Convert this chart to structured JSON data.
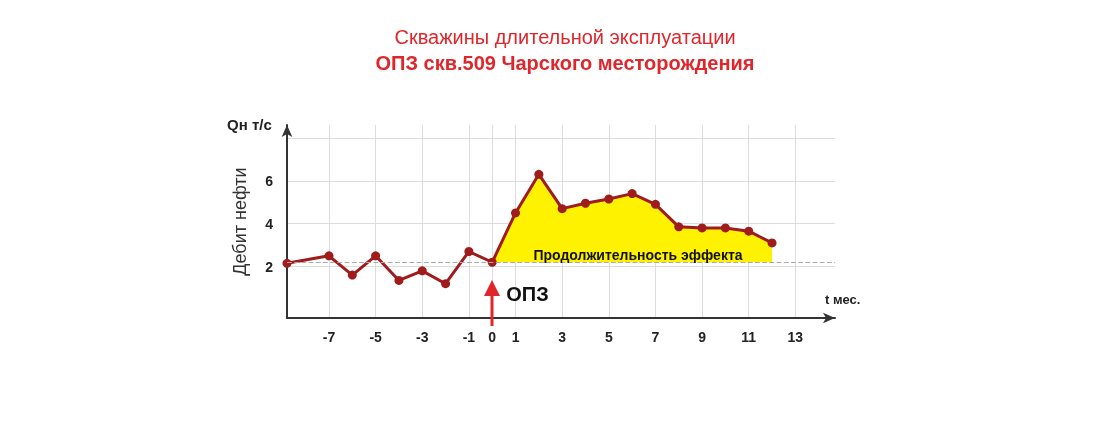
{
  "chart_data": {
    "type": "line",
    "title": "Скважины длительной эксплуатации",
    "subtitle": "ОПЗ скв.509 Чарского месторождения",
    "xlabel": "t мес.",
    "ylabel": "Дебит нефти",
    "series": [
      {
        "type": "area",
        "marker": "none",
        "color": "#fff200",
        "x": [
          0,
          1,
          2,
          3,
          4,
          5,
          6,
          7,
          8,
          9,
          10,
          11,
          12
        ],
        "values": [
          2.2,
          4.5,
          6.3,
          4.7,
          4.95,
          5.15,
          5.4,
          4.9,
          3.85,
          3.8,
          3.8,
          3.65,
          3.1
        ]
      },
      {
        "color": "#a01c1c",
        "x": [
          -8.8,
          -7,
          -6,
          -5,
          -4,
          -3,
          -2,
          -1,
          0,
          1,
          2,
          3,
          4,
          5,
          6,
          7,
          8,
          9,
          10,
          11,
          12
        ],
        "values": [
          2.15,
          2.5,
          1.6,
          2.5,
          1.35,
          1.8,
          1.2,
          2.7,
          2.2,
          4.5,
          6.3,
          4.7,
          4.95,
          5.15,
          5.4,
          4.9,
          3.85,
          3.8,
          3.8,
          3.65,
          3.1
        ]
      }
    ],
    "xlim": [
      -8.8,
      14.7
    ],
    "xticks": [
      -7,
      -5,
      -3,
      -1,
      0,
      1,
      3,
      5,
      7,
      9,
      11,
      13
    ],
    "ylim": [
      -0.4,
      8.6
    ],
    "yticks": [
      2,
      4,
      6,
      {
        "value": 8,
        "label": null
      }
    ],
    "ref_lines": [
      {
        "axis": "y",
        "value": 2.2,
        "color": "#aaaaaa",
        "line_style": "dashed"
      }
    ],
    "annotations": [
      "Qн т/с",
      "Продолжительность эффекта",
      "ОПЗ"
    ],
    "grid": true,
    "marker": "circle",
    "line_style": "solid"
  }
}
